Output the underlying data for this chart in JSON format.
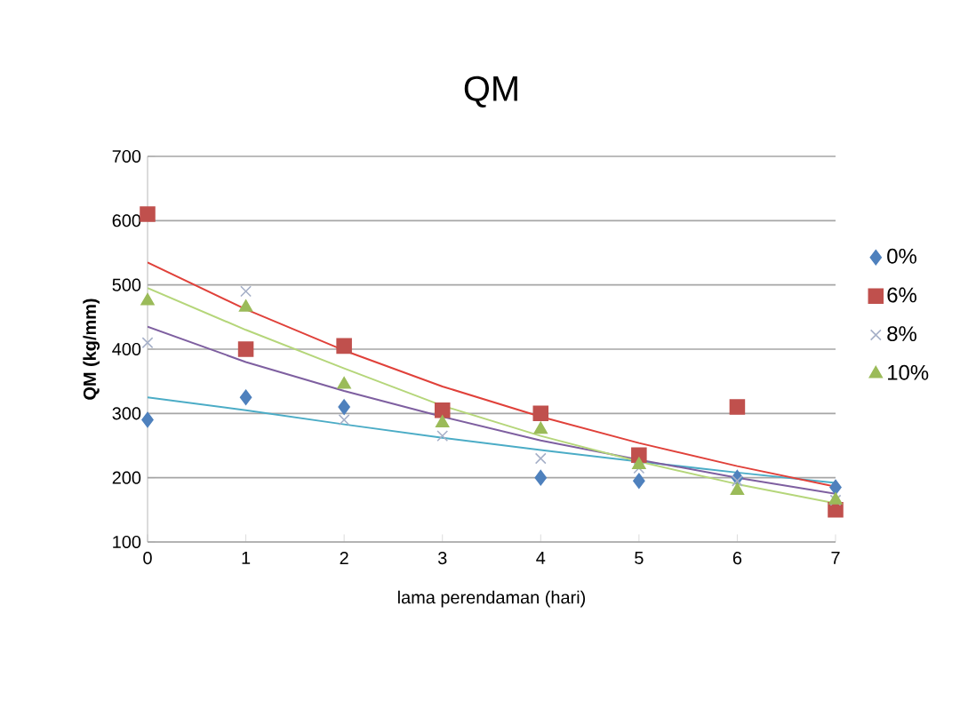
{
  "chart_data": {
    "type": "scatter",
    "title": "QM",
    "xlabel": "lama perendaman (hari)",
    "ylabel": "QM (kg/mm)",
    "x": [
      0,
      1,
      2,
      3,
      4,
      5,
      6,
      7
    ],
    "xlim": [
      0,
      7
    ],
    "xticks": [
      0,
      1,
      2,
      3,
      4,
      5,
      6,
      7
    ],
    "ylim": [
      100,
      700
    ],
    "yticks": [
      100,
      200,
      300,
      400,
      500,
      600,
      700
    ],
    "grid": "y",
    "legend": "right",
    "series": [
      {
        "name": "0%",
        "color": "#4f81bd",
        "marker": "diamond",
        "values": [
          290,
          325,
          310,
          null,
          200,
          195,
          200,
          185
        ]
      },
      {
        "name": "6%",
        "color": "#c0504d",
        "marker": "square",
        "values": [
          610,
          400,
          405,
          305,
          300,
          235,
          310,
          150
        ]
      },
      {
        "name": "8%",
        "color": "#a6b0c8",
        "marker": "cross",
        "values": [
          410,
          490,
          290,
          265,
          230,
          215,
          195,
          165
        ]
      },
      {
        "name": "10%",
        "color": "#9bbb59",
        "marker": "triangle",
        "values": [
          475,
          465,
          345,
          285,
          275,
          220,
          180,
          165
        ]
      },
      {
        "type": "line",
        "color": "#4bacc6",
        "marker": "none",
        "x": [
          0,
          1,
          2,
          3,
          4,
          5,
          6,
          7
        ],
        "values": [
          325,
          305,
          283,
          262,
          243,
          225,
          208,
          192
        ]
      },
      {
        "type": "line",
        "color": "#e0413a",
        "marker": "none",
        "x": [
          0,
          1,
          2,
          3,
          4,
          5,
          6,
          7
        ],
        "values": [
          535,
          462,
          398,
          342,
          295,
          254,
          218,
          186
        ]
      },
      {
        "type": "line",
        "color": "#7e5fa0",
        "marker": "none",
        "x": [
          0,
          1,
          2,
          3,
          4,
          5,
          6,
          7
        ],
        "values": [
          435,
          380,
          335,
          295,
          258,
          228,
          200,
          175
        ]
      },
      {
        "type": "line",
        "color": "#b5d67a",
        "marker": "none",
        "x": [
          0,
          1,
          2,
          3,
          4,
          5,
          6,
          7
        ],
        "values": [
          495,
          430,
          370,
          312,
          265,
          225,
          190,
          160
        ]
      }
    ]
  }
}
